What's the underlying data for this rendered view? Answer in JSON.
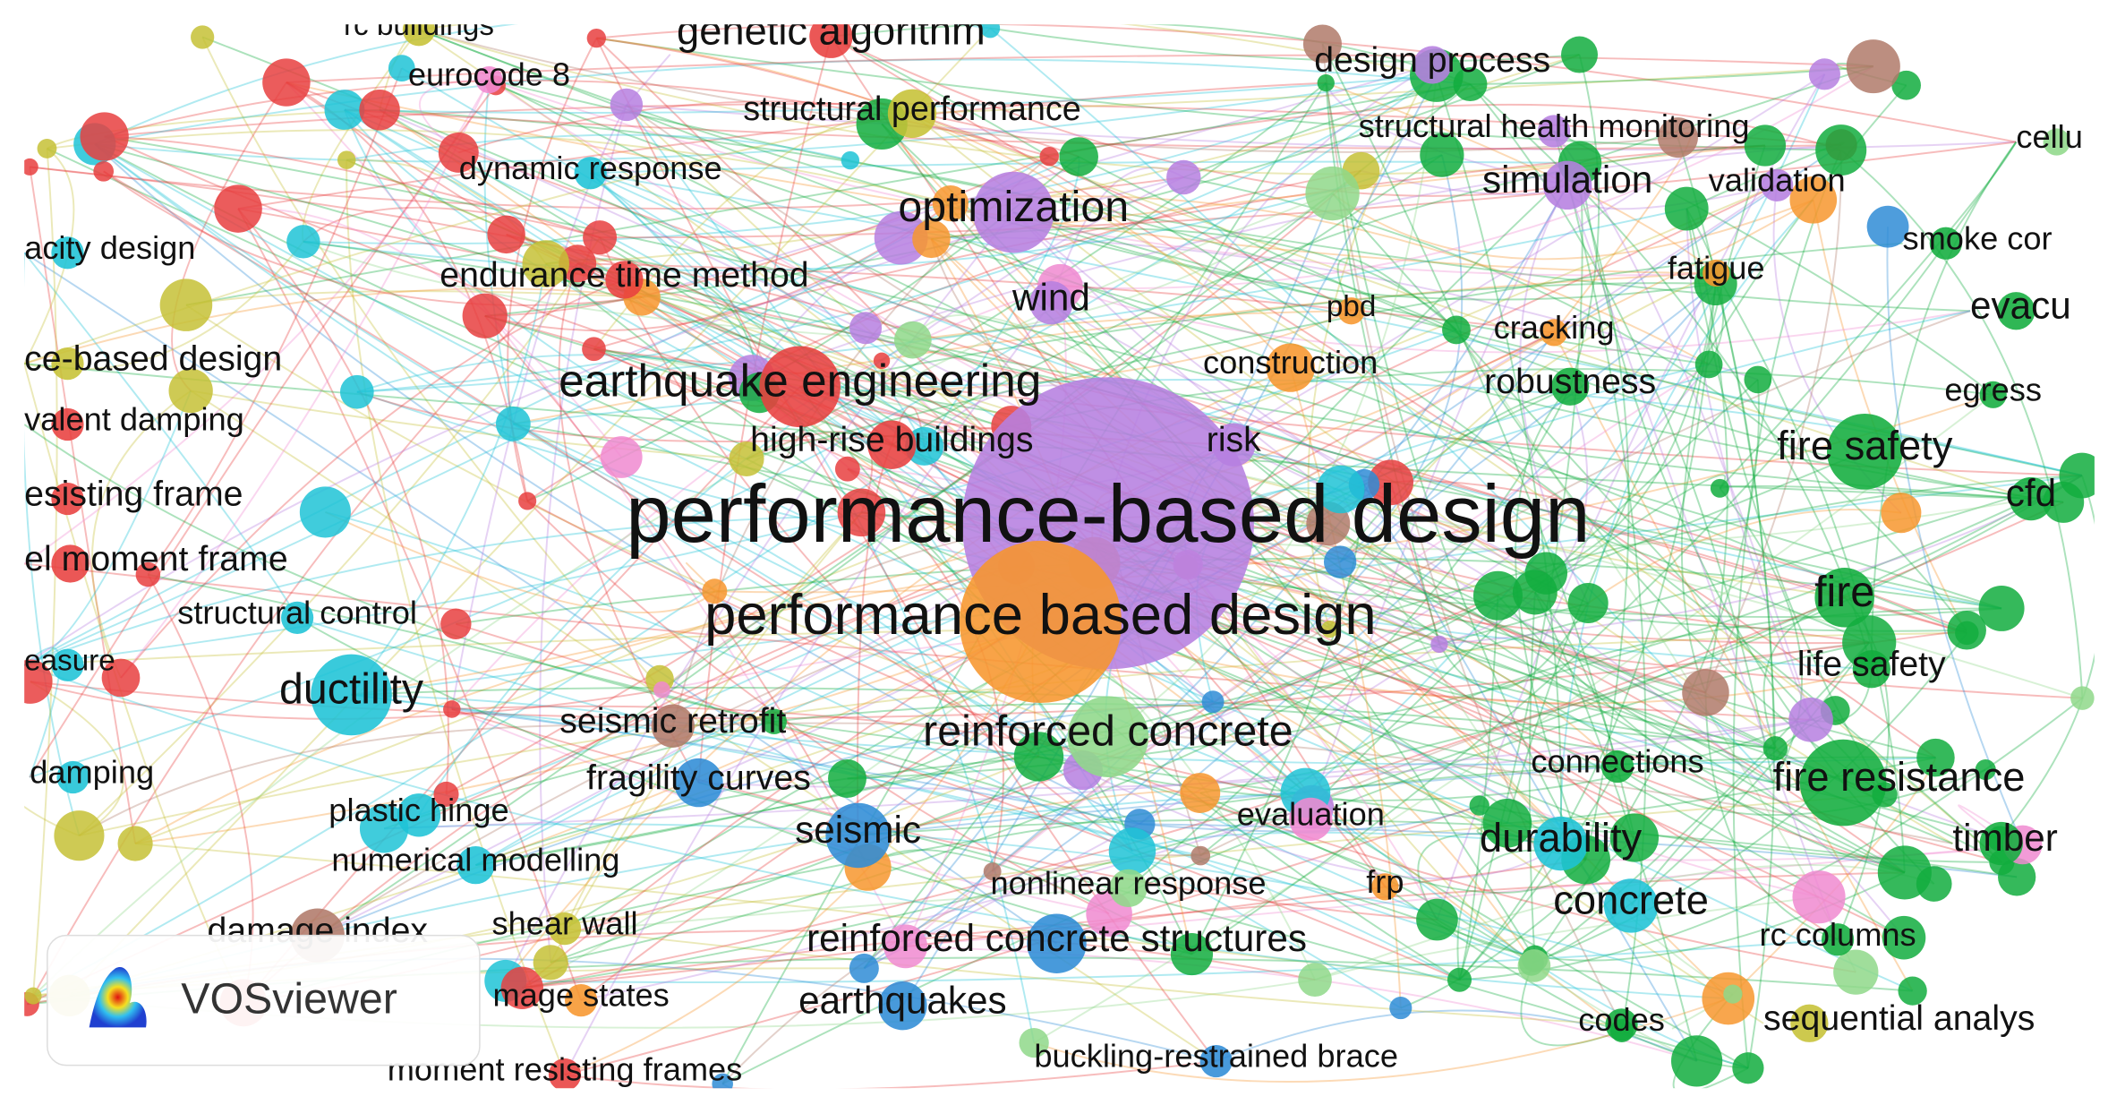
{
  "nodes": [
    {
      "label": "rc buildings"
    },
    {
      "label": "genetic algorithm"
    },
    {
      "label": "eurocode 8"
    },
    {
      "label": "design process"
    },
    {
      "label": "structural performance"
    },
    {
      "label": "structural health monitoring"
    },
    {
      "label": "cellu"
    },
    {
      "label": "dynamic response"
    },
    {
      "label": "optimization"
    },
    {
      "label": "simulation"
    },
    {
      "label": "validation"
    },
    {
      "label": "acity design"
    },
    {
      "label": "smoke cor"
    },
    {
      "label": "endurance time method"
    },
    {
      "label": "fatigue"
    },
    {
      "label": "wind"
    },
    {
      "label": "pbd"
    },
    {
      "label": "evacu"
    },
    {
      "label": "cracking"
    },
    {
      "label": "ce-based design"
    },
    {
      "label": "construction"
    },
    {
      "label": "earthquake engineering"
    },
    {
      "label": "robustness"
    },
    {
      "label": "egress"
    },
    {
      "label": "valent damping"
    },
    {
      "label": "high-rise buildings"
    },
    {
      "label": "risk"
    },
    {
      "label": "fire safety"
    },
    {
      "label": "esisting frame"
    },
    {
      "label": "cfd"
    },
    {
      "label": "performance-based design"
    },
    {
      "label": "el moment frame"
    },
    {
      "label": "fire"
    },
    {
      "label": "structural control"
    },
    {
      "label": "performance based design"
    },
    {
      "label": "easure"
    },
    {
      "label": "ductility"
    },
    {
      "label": "life safety"
    },
    {
      "label": "seismic retrofit"
    },
    {
      "label": "reinforced concrete"
    },
    {
      "label": "damping"
    },
    {
      "label": "connections"
    },
    {
      "label": "fragility curves"
    },
    {
      "label": "fire resistance"
    },
    {
      "label": "plastic hinge"
    },
    {
      "label": "evaluation"
    },
    {
      "label": "seismic"
    },
    {
      "label": "durability"
    },
    {
      "label": "timber"
    },
    {
      "label": "numerical modelling"
    },
    {
      "label": "nonlinear response"
    },
    {
      "label": "frp"
    },
    {
      "label": "concrete"
    },
    {
      "label": "damage index"
    },
    {
      "label": "shear wall"
    },
    {
      "label": "reinforced concrete structures"
    },
    {
      "label": "rc columns"
    },
    {
      "label": "mage states"
    },
    {
      "label": "earthquakes"
    },
    {
      "label": "codes"
    },
    {
      "label": "sequential analys"
    },
    {
      "label": "moment resisting frames"
    },
    {
      "label": "buckling-restrained brace"
    }
  ],
  "logo": {
    "text": "VOSviewer"
  }
}
